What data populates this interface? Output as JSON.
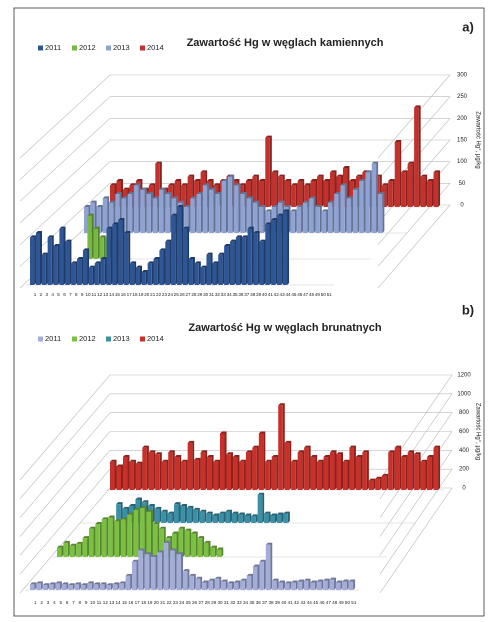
{
  "chart_data": [
    {
      "type": "bar3d",
      "panel_label": "a)",
      "title": "Zawartość Hg w węglach kamiennych",
      "y_label": "Zawartość Hg°, µg/kg",
      "categories": [
        "1",
        "2",
        "3",
        "4",
        "5",
        "6",
        "7",
        "8",
        "9",
        "10",
        "11",
        "12",
        "13",
        "14",
        "15",
        "16",
        "17",
        "18",
        "19",
        "20",
        "21",
        "22",
        "23",
        "24",
        "25",
        "26",
        "27",
        "28",
        "29",
        "30",
        "31",
        "32",
        "33",
        "34",
        "35",
        "36",
        "37",
        "38",
        "39",
        "40",
        "41",
        "42",
        "43",
        "44",
        "45",
        "46",
        "47",
        "48",
        "49",
        "50",
        "51"
      ],
      "ylim": [
        0,
        300
      ],
      "yticks": [
        0,
        50,
        100,
        150,
        200,
        250,
        300
      ],
      "series": [
        {
          "name": "2011",
          "color": "#2e5594",
          "values": [
            110,
            120,
            70,
            110,
            90,
            130,
            100,
            50,
            60,
            80,
            40,
            50,
            60,
            130,
            140,
            150,
            120,
            50,
            40,
            30,
            50,
            60,
            80,
            100,
            160,
            180,
            130,
            60,
            50,
            40,
            70,
            50,
            70,
            90,
            100,
            110,
            110,
            130,
            120,
            100,
            140,
            150,
            160,
            170,
            null,
            null,
            null,
            null,
            null,
            null,
            null
          ]
        },
        {
          "name": "2012",
          "color": "#76b843",
          "values": [
            null,
            null,
            null,
            null,
            null,
            100,
            70,
            50,
            50,
            40,
            null,
            null,
            null,
            null,
            null,
            null,
            null,
            null,
            null,
            null,
            null,
            null,
            null,
            null,
            null,
            null,
            null,
            null,
            null,
            null,
            null,
            null,
            null,
            null,
            null,
            null,
            null,
            null,
            null,
            null,
            null,
            null,
            null,
            null,
            null,
            null,
            null,
            null,
            null,
            null,
            null
          ]
        },
        {
          "name": "2013",
          "color": "#8fa3d3",
          "values": [
            60,
            70,
            60,
            80,
            70,
            90,
            80,
            90,
            110,
            100,
            90,
            80,
            100,
            90,
            80,
            70,
            60,
            80,
            90,
            110,
            100,
            90,
            120,
            130,
            110,
            90,
            80,
            70,
            60,
            50,
            60,
            70,
            60,
            50,
            60,
            70,
            80,
            60,
            50,
            70,
            90,
            110,
            80,
            100,
            120,
            140,
            160,
            90,
            null,
            null,
            null
          ]
        },
        {
          "name": "2014",
          "color": "#c3312c",
          "values": [
            50,
            60,
            40,
            50,
            60,
            40,
            50,
            100,
            40,
            50,
            60,
            50,
            70,
            60,
            80,
            60,
            50,
            60,
            70,
            60,
            50,
            60,
            70,
            60,
            160,
            80,
            70,
            60,
            50,
            60,
            50,
            60,
            70,
            60,
            80,
            70,
            90,
            60,
            70,
            80,
            60,
            70,
            50,
            60,
            150,
            80,
            100,
            230,
            70,
            60,
            80
          ]
        }
      ]
    },
    {
      "type": "bar3d",
      "panel_label": "b)",
      "title": "Zawartość Hg w węglach brunatnych",
      "y_label": "Zawartość Hg°, µg/kg",
      "categories": [
        "1",
        "2",
        "3",
        "4",
        "5",
        "6",
        "7",
        "8",
        "9",
        "10",
        "11",
        "12",
        "13",
        "14",
        "15",
        "16",
        "17",
        "18",
        "19",
        "20",
        "21",
        "22",
        "23",
        "24",
        "25",
        "26",
        "27",
        "28",
        "29",
        "30",
        "31",
        "32",
        "33",
        "34",
        "35",
        "36",
        "37",
        "38",
        "39",
        "40",
        "41",
        "42",
        "43",
        "44",
        "45",
        "46",
        "47",
        "48",
        "49",
        "50",
        "51"
      ],
      "ylim": [
        0,
        1200
      ],
      "yticks": [
        0,
        200,
        400,
        600,
        800,
        1000,
        1200
      ],
      "series": [
        {
          "name": "2011",
          "color": "#a3add9",
          "values": [
            60,
            70,
            50,
            60,
            70,
            60,
            50,
            60,
            50,
            70,
            60,
            60,
            50,
            60,
            70,
            150,
            300,
            420,
            380,
            350,
            400,
            500,
            420,
            380,
            200,
            150,
            120,
            80,
            100,
            120,
            90,
            70,
            80,
            100,
            150,
            250,
            300,
            480,
            100,
            80,
            70,
            80,
            90,
            100,
            80,
            90,
            100,
            110,
            80,
            90,
            90
          ]
        },
        {
          "name": "2012",
          "color": "#7cc043",
          "values": [
            100,
            150,
            120,
            140,
            200,
            300,
            350,
            400,
            420,
            380,
            400,
            450,
            500,
            520,
            480,
            350,
            300,
            200,
            250,
            300,
            280,
            250,
            200,
            150,
            100,
            80,
            null,
            null,
            null,
            null,
            null,
            null,
            null,
            null,
            null,
            null,
            null,
            null,
            null,
            null,
            null,
            null,
            null,
            null,
            null,
            null,
            null,
            null,
            null,
            null,
            null
          ]
        },
        {
          "name": "2013",
          "color": "#3b8fa6",
          "values": [
            null,
            null,
            null,
            null,
            null,
            200,
            150,
            180,
            250,
            220,
            180,
            150,
            120,
            100,
            200,
            180,
            160,
            140,
            120,
            100,
            80,
            100,
            120,
            100,
            90,
            80,
            70,
            300,
            100,
            80,
            90,
            100,
            null,
            null,
            null,
            null,
            null,
            null,
            null,
            null,
            null,
            null,
            null,
            null,
            null,
            null,
            null,
            null,
            null,
            null,
            null
          ]
        },
        {
          "name": "2014",
          "color": "#c8302a",
          "values": [
            300,
            250,
            350,
            300,
            280,
            450,
            400,
            380,
            300,
            400,
            350,
            300,
            500,
            320,
            400,
            350,
            300,
            600,
            380,
            350,
            300,
            400,
            450,
            600,
            300,
            350,
            900,
            500,
            300,
            400,
            450,
            350,
            300,
            350,
            400,
            380,
            300,
            450,
            350,
            400,
            100,
            120,
            150,
            400,
            450,
            350,
            400,
            380,
            300,
            350,
            450
          ]
        }
      ]
    }
  ]
}
